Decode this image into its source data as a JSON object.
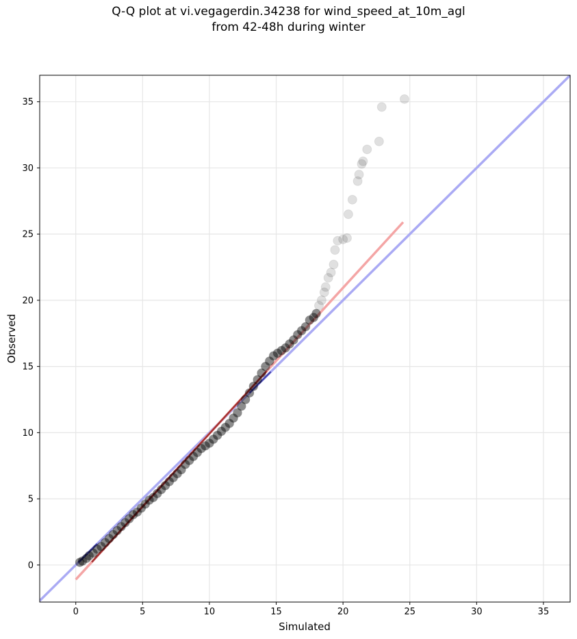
{
  "title_line1": "Q-Q plot at vi.vegagerdin.34238 for wind_speed_at_10m_agl",
  "title_line2": "from 42-48h during winter",
  "chart_data": {
    "type": "scatter",
    "title": "Q-Q plot at vi.vegagerdin.34238 for wind_speed_at_10m_agl from 42-48h during winter",
    "xlabel": "Simulated",
    "ylabel": "Observed",
    "xlim": [
      -2.7,
      37.0
    ],
    "ylim": [
      -2.8,
      37.0
    ],
    "xticks": [
      0,
      5,
      10,
      15,
      20,
      25,
      30,
      35
    ],
    "yticks": [
      0,
      5,
      10,
      15,
      20,
      25,
      30,
      35
    ],
    "grid": true,
    "colors": {
      "points": "#000000",
      "identity_line": "#aaaaf4",
      "fit_line": "#f4a5a5",
      "inner_fit": "#800000",
      "inner_identity": "#000080"
    },
    "reference_lines": [
      {
        "kind": "identity",
        "x": [
          -2.7,
          37.0
        ],
        "y": [
          -2.7,
          37.0
        ]
      },
      {
        "kind": "fit",
        "x": [
          0.0,
          24.5
        ],
        "y": [
          -1.1,
          25.9
        ]
      }
    ],
    "points": [
      [
        0.3,
        0.2
      ],
      [
        0.5,
        0.3
      ],
      [
        0.8,
        0.5
      ],
      [
        1.0,
        0.7
      ],
      [
        1.3,
        0.9
      ],
      [
        1.6,
        1.2
      ],
      [
        1.9,
        1.4
      ],
      [
        2.2,
        1.7
      ],
      [
        2.5,
        2.0
      ],
      [
        2.8,
        2.3
      ],
      [
        3.1,
        2.6
      ],
      [
        3.4,
        2.9
      ],
      [
        3.7,
        3.2
      ],
      [
        4.0,
        3.5
      ],
      [
        4.3,
        3.8
      ],
      [
        4.6,
        4.0
      ],
      [
        4.9,
        4.3
      ],
      [
        5.2,
        4.6
      ],
      [
        5.5,
        4.9
      ],
      [
        5.8,
        5.1
      ],
      [
        6.1,
        5.4
      ],
      [
        6.4,
        5.7
      ],
      [
        6.7,
        6.0
      ],
      [
        7.0,
        6.3
      ],
      [
        7.3,
        6.6
      ],
      [
        7.6,
        6.9
      ],
      [
        7.9,
        7.2
      ],
      [
        8.2,
        7.6
      ],
      [
        8.5,
        7.9
      ],
      [
        8.8,
        8.2
      ],
      [
        9.1,
        8.5
      ],
      [
        9.4,
        8.8
      ],
      [
        9.7,
        9.0
      ],
      [
        10.0,
        9.2
      ],
      [
        10.3,
        9.5
      ],
      [
        10.6,
        9.8
      ],
      [
        10.9,
        10.1
      ],
      [
        11.2,
        10.4
      ],
      [
        11.5,
        10.7
      ],
      [
        11.8,
        11.1
      ],
      [
        12.1,
        11.5
      ],
      [
        12.4,
        12.0
      ],
      [
        12.7,
        12.5
      ],
      [
        13.0,
        13.0
      ],
      [
        13.3,
        13.5
      ],
      [
        13.6,
        14.0
      ],
      [
        13.9,
        14.5
      ],
      [
        14.2,
        15.0
      ],
      [
        14.5,
        15.4
      ],
      [
        14.8,
        15.8
      ],
      [
        15.1,
        16.0
      ],
      [
        15.4,
        16.2
      ],
      [
        15.7,
        16.4
      ],
      [
        16.0,
        16.7
      ],
      [
        16.3,
        17.0
      ],
      [
        16.6,
        17.4
      ],
      [
        16.9,
        17.7
      ],
      [
        17.2,
        18.0
      ],
      [
        17.5,
        18.5
      ],
      [
        17.8,
        18.7
      ],
      [
        18.0,
        19.0
      ],
      [
        18.2,
        19.6
      ],
      [
        18.4,
        20.0
      ],
      [
        18.6,
        20.6
      ],
      [
        18.7,
        21.0
      ],
      [
        18.9,
        21.7
      ],
      [
        19.1,
        22.1
      ],
      [
        19.3,
        22.7
      ],
      [
        19.4,
        23.8
      ],
      [
        19.6,
        24.5
      ],
      [
        20.0,
        24.6
      ],
      [
        20.3,
        24.7
      ],
      [
        20.4,
        26.5
      ],
      [
        20.7,
        27.6
      ],
      [
        21.1,
        29.0
      ],
      [
        21.2,
        29.5
      ],
      [
        21.4,
        30.3
      ],
      [
        21.5,
        30.5
      ],
      [
        21.8,
        31.4
      ],
      [
        22.7,
        32.0
      ],
      [
        22.9,
        34.6
      ],
      [
        24.6,
        35.2
      ]
    ]
  }
}
